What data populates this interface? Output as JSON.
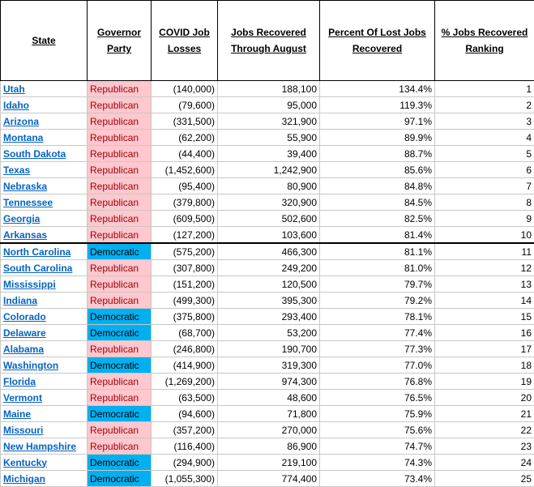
{
  "table": {
    "headers": [
      "State",
      "Governor Party",
      "COVID Job Losses",
      "Jobs Recovered Through August",
      "Percent Of Lost Jobs Recovered",
      "% Jobs Recovered Ranking"
    ],
    "rows": [
      {
        "state": "Utah",
        "party": "Republican",
        "party_fill": "#ffc7ce",
        "party_color": "#9c0006",
        "losses": "(140,000)",
        "recovered": "188,100",
        "percent": "134.4%",
        "rank": 1
      },
      {
        "state": "Idaho",
        "party": "Republican",
        "party_fill": "#ffc7ce",
        "party_color": "#9c0006",
        "losses": "(79,600)",
        "recovered": "95,000",
        "percent": "119.3%",
        "rank": 2
      },
      {
        "state": "Arizona",
        "party": "Republican",
        "party_fill": "#ffc7ce",
        "party_color": "#9c0006",
        "losses": "(331,500)",
        "recovered": "321,900",
        "percent": "97.1%",
        "rank": 3
      },
      {
        "state": "Montana",
        "party": "Republican",
        "party_fill": "#ffc7ce",
        "party_color": "#9c0006",
        "losses": "(62,200)",
        "recovered": "55,900",
        "percent": "89.9%",
        "rank": 4
      },
      {
        "state": "South Dakota",
        "party": "Republican",
        "party_fill": "#ffc7ce",
        "party_color": "#9c0006",
        "losses": "(44,400)",
        "recovered": "39,400",
        "percent": "88.7%",
        "rank": 5
      },
      {
        "state": "Texas",
        "party": "Republican",
        "party_fill": "#ffc7ce",
        "party_color": "#9c0006",
        "losses": "(1,452,600)",
        "recovered": "1,242,900",
        "percent": "85.6%",
        "rank": 6
      },
      {
        "state": "Nebraska",
        "party": "Republican",
        "party_fill": "#ffc7ce",
        "party_color": "#9c0006",
        "losses": "(95,400)",
        "recovered": "80,900",
        "percent": "84.8%",
        "rank": 7
      },
      {
        "state": "Tennessee",
        "party": "Republican",
        "party_fill": "#ffc7ce",
        "party_color": "#9c0006",
        "losses": "(379,800)",
        "recovered": "320,900",
        "percent": "84.5%",
        "rank": 8
      },
      {
        "state": "Georgia",
        "party": "Republican",
        "party_fill": "#ffc7ce",
        "party_color": "#9c0006",
        "losses": "(609,500)",
        "recovered": "502,600",
        "percent": "82.5%",
        "rank": 9
      },
      {
        "state": "Arkansas",
        "party": "Republican",
        "party_fill": "#ffc7ce",
        "party_color": "#9c0006",
        "losses": "(127,200)",
        "recovered": "103,600",
        "percent": "81.4%",
        "rank": 10
      },
      {
        "state": "North Carolina",
        "party": "Democratic",
        "party_fill": "#00b0f0",
        "party_color": "#000000",
        "losses": "(575,200)",
        "recovered": "466,300",
        "percent": "81.1%",
        "rank": 11
      },
      {
        "state": "South Carolina",
        "party": "Republican",
        "party_fill": "#ffc7ce",
        "party_color": "#9c0006",
        "losses": "(307,800)",
        "recovered": "249,200",
        "percent": "81.0%",
        "rank": 12
      },
      {
        "state": "Mississippi",
        "party": "Republican",
        "party_fill": "#ffc7ce",
        "party_color": "#9c0006",
        "losses": "(151,200)",
        "recovered": "120,500",
        "percent": "79.7%",
        "rank": 13
      },
      {
        "state": "Indiana",
        "party": "Republican",
        "party_fill": "#ffc7ce",
        "party_color": "#9c0006",
        "losses": "(499,300)",
        "recovered": "395,300",
        "percent": "79.2%",
        "rank": 14
      },
      {
        "state": "Colorado",
        "party": "Democratic",
        "party_fill": "#00b0f0",
        "party_color": "#000000",
        "losses": "(375,800)",
        "recovered": "293,400",
        "percent": "78.1%",
        "rank": 15
      },
      {
        "state": "Delaware",
        "party": "Democratic",
        "party_fill": "#00b0f0",
        "party_color": "#000000",
        "losses": "(68,700)",
        "recovered": "53,200",
        "percent": "77.4%",
        "rank": 16
      },
      {
        "state": "Alabama",
        "party": "Republican",
        "party_fill": "#ffc7ce",
        "party_color": "#9c0006",
        "losses": "(246,800)",
        "recovered": "190,700",
        "percent": "77.3%",
        "rank": 17
      },
      {
        "state": "Washington",
        "party": "Democratic",
        "party_fill": "#00b0f0",
        "party_color": "#000000",
        "losses": "(414,900)",
        "recovered": "319,300",
        "percent": "77.0%",
        "rank": 18
      },
      {
        "state": "Florida",
        "party": "Republican",
        "party_fill": "#ffc7ce",
        "party_color": "#9c0006",
        "losses": "(1,269,200)",
        "recovered": "974,300",
        "percent": "76.8%",
        "rank": 19
      },
      {
        "state": "Vermont",
        "party": "Republican",
        "party_fill": "#ffc7ce",
        "party_color": "#9c0006",
        "losses": "(63,500)",
        "recovered": "48,600",
        "percent": "76.5%",
        "rank": 20
      },
      {
        "state": "Maine",
        "party": "Democratic",
        "party_fill": "#00b0f0",
        "party_color": "#000000",
        "losses": "(94,600)",
        "recovered": "71,800",
        "percent": "75.9%",
        "rank": 21
      },
      {
        "state": "Missouri",
        "party": "Republican",
        "party_fill": "#ffc7ce",
        "party_color": "#9c0006",
        "losses": "(357,200)",
        "recovered": "270,000",
        "percent": "75.6%",
        "rank": 22
      },
      {
        "state": "New Hampshire",
        "party": "Republican",
        "party_fill": "#ffc7ce",
        "party_color": "#9c0006",
        "losses": "(116,400)",
        "recovered": "86,900",
        "percent": "74.7%",
        "rank": 23
      },
      {
        "state": "Kentucky",
        "party": "Democratic",
        "party_fill": "#00b0f0",
        "party_color": "#000000",
        "losses": "(294,900)",
        "recovered": "219,100",
        "percent": "74.3%",
        "rank": 24
      },
      {
        "state": "Michigan",
        "party": "Democratic",
        "party_fill": "#00b0f0",
        "party_color": "#000000",
        "losses": "(1,055,300)",
        "recovered": "774,400",
        "percent": "73.4%",
        "rank": 25
      }
    ]
  }
}
